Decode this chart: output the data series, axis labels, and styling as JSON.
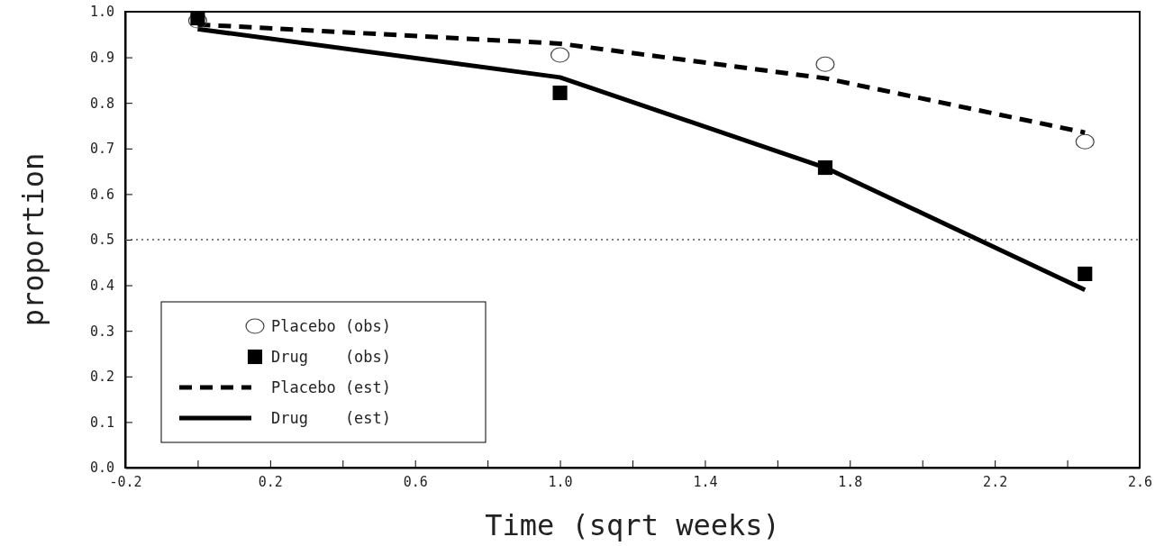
{
  "chart_data": {
    "type": "line",
    "xlabel": "Time (sqrt weeks)",
    "ylabel": "proportion",
    "xlim": [
      -0.2,
      2.6
    ],
    "xticks": [
      -0.2,
      {
        "value": 0,
        "label": null
      },
      0.2,
      {
        "value": 0.4,
        "label": null
      },
      0.6,
      {
        "value": 0.8,
        "label": null
      },
      {
        "value": 1,
        "label": "1.0"
      },
      {
        "value": 1.2,
        "label": null
      },
      1.4,
      {
        "value": 1.6,
        "label": null
      },
      1.8,
      {
        "value": 2.0,
        "label": null
      },
      2.2,
      {
        "value": 2.4,
        "label": null
      },
      2.6
    ],
    "ylim": [
      0,
      1
    ],
    "yticks": [
      {
        "value": 0,
        "label": "0.0"
      },
      0.1,
      0.2,
      0.3,
      0.4,
      0.5,
      0.6,
      0.7,
      0.8,
      0.9,
      {
        "value": 1,
        "label": "1.0"
      }
    ],
    "legend": "bottom left",
    "grid": false,
    "ref_lines": [
      {
        "axis": "y",
        "value": 0.5,
        "line_style": "dotted",
        "color": "#555555"
      }
    ],
    "series": [
      {
        "name": "Placebo (obs)",
        "type": "scatter",
        "marker": "circle",
        "color": "#444444",
        "x": [
          0,
          1,
          1.732,
          2.449
        ],
        "values": [
          0.98,
          0.905,
          0.885,
          0.715
        ]
      },
      {
        "name": "Drug    (obs)",
        "type": "scatter",
        "marker": "square",
        "color": "#000000",
        "x": [
          0,
          1,
          1.732,
          2.449
        ],
        "values": [
          0.986,
          0.822,
          0.658,
          0.425
        ]
      },
      {
        "name": "Placebo (est)",
        "marker": "none",
        "line_style": "dashed",
        "color": "#000000",
        "x": [
          0,
          1,
          1.732,
          2.449
        ],
        "values": [
          0.972,
          0.93,
          0.854,
          0.735
        ]
      },
      {
        "name": "Drug    (est)",
        "marker": "none",
        "line_style": "solid",
        "color": "#000000",
        "x": [
          0,
          1,
          1.732,
          2.449
        ],
        "values": [
          0.962,
          0.856,
          0.658,
          0.39
        ]
      }
    ]
  }
}
